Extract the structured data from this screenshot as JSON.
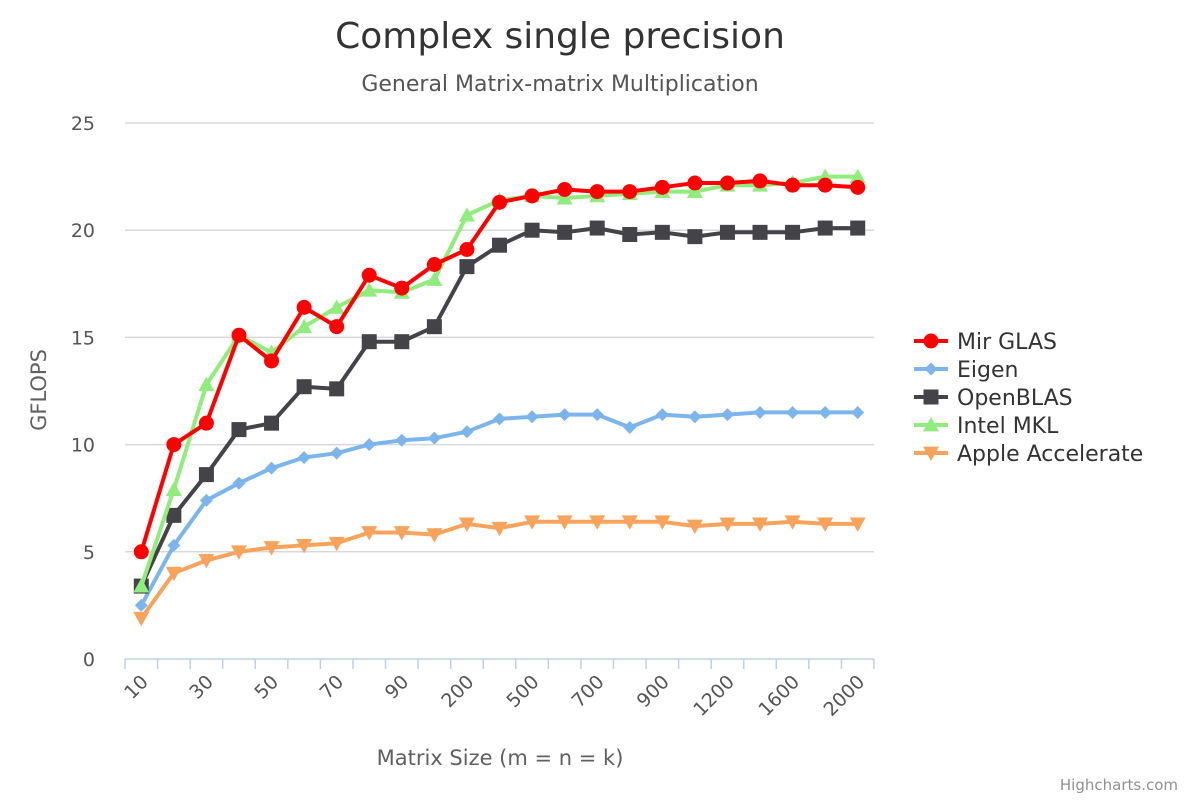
{
  "chart_data": {
    "type": "line",
    "title": "Complex single precision",
    "subtitle": "General Matrix-matrix Multiplication",
    "xlabel": "Matrix Size (m = n = k)",
    "ylabel": "GFLOPS",
    "ylim": [
      0,
      25
    ],
    "yticks": [
      0,
      5,
      10,
      15,
      20,
      25
    ],
    "grid": true,
    "legend_position": "right",
    "credits": "Highcharts.com",
    "x": [
      10,
      20,
      30,
      40,
      50,
      60,
      70,
      80,
      90,
      100,
      200,
      300,
      500,
      600,
      700,
      800,
      900,
      1000,
      1200,
      1400,
      1600,
      1800,
      2000
    ],
    "x_tick_labels": [
      "10",
      "30",
      "50",
      "70",
      "90",
      "200",
      "500",
      "700",
      "900",
      "1200",
      "1600",
      "2000"
    ],
    "series": [
      {
        "name": "Mir GLAS",
        "color": "#ff0000",
        "marker": "circle",
        "values": [
          5.0,
          10.0,
          11.0,
          15.1,
          13.9,
          16.4,
          15.5,
          17.9,
          17.3,
          18.4,
          19.1,
          21.3,
          21.6,
          21.9,
          21.8,
          21.8,
          22.0,
          22.2,
          22.2,
          22.3,
          22.1,
          22.1,
          22.0
        ]
      },
      {
        "name": "Eigen",
        "color": "#7cb5ec",
        "marker": "diamond",
        "values": [
          2.5,
          5.3,
          7.4,
          8.2,
          8.9,
          9.4,
          9.6,
          10.0,
          10.2,
          10.3,
          10.6,
          11.2,
          11.3,
          11.4,
          11.4,
          10.8,
          11.4,
          11.3,
          11.4,
          11.5,
          11.5,
          11.5,
          11.5
        ]
      },
      {
        "name": "OpenBLAS",
        "color": "#434348",
        "marker": "square",
        "values": [
          3.4,
          6.7,
          8.6,
          10.7,
          11.0,
          12.7,
          12.6,
          14.8,
          14.8,
          15.5,
          18.3,
          19.3,
          20.0,
          19.9,
          20.1,
          19.8,
          19.9,
          19.7,
          19.9,
          19.9,
          19.9,
          20.1,
          20.1
        ]
      },
      {
        "name": "Intel MKL",
        "color": "#90ed7d",
        "marker": "triangle",
        "values": [
          3.4,
          7.9,
          12.8,
          15.1,
          14.3,
          15.5,
          16.4,
          17.2,
          17.1,
          17.7,
          20.7,
          21.4,
          21.6,
          21.5,
          21.6,
          21.7,
          21.8,
          21.8,
          22.1,
          22.1,
          22.2,
          22.5,
          22.5
        ]
      },
      {
        "name": "Apple Accelerate",
        "color": "#f7a35c",
        "marker": "triangle-down",
        "values": [
          1.9,
          4.0,
          4.6,
          5.0,
          5.2,
          5.3,
          5.4,
          5.9,
          5.9,
          5.8,
          6.3,
          6.1,
          6.4,
          6.4,
          6.4,
          6.4,
          6.4,
          6.2,
          6.3,
          6.3,
          6.4,
          6.3,
          6.3
        ]
      }
    ]
  }
}
